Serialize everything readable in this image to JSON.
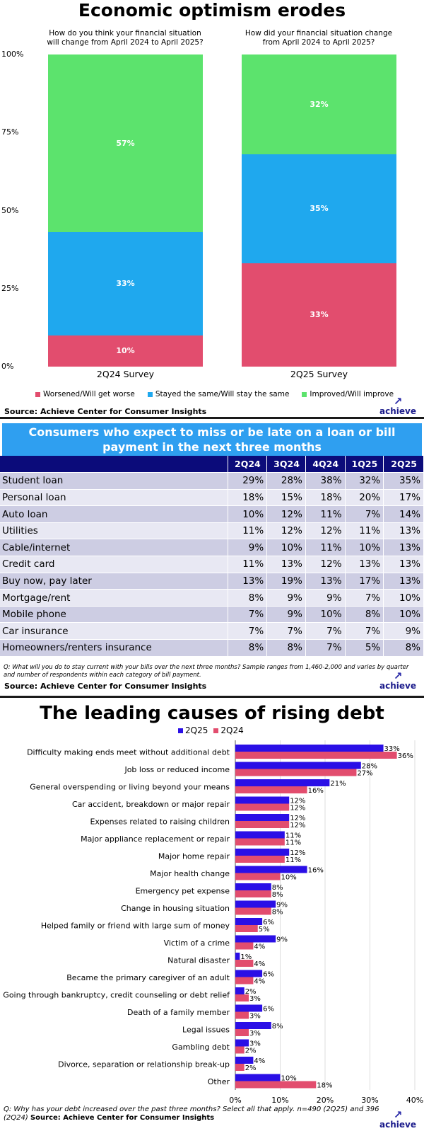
{
  "chart_data": [
    {
      "type": "bar",
      "stacked": true,
      "title": "Economic optimism erodes",
      "questions": [
        "How do you think your financial situation will change from April 2024 to April 2025?",
        "How did your financial situation change from April 2024 to April 2025?"
      ],
      "categories": [
        "2Q24 Survey",
        "2Q25 Survey"
      ],
      "yticks": [
        "0%",
        "25%",
        "50%",
        "75%",
        "100%"
      ],
      "ylim": [
        0,
        100
      ],
      "series": [
        {
          "name": "Worsened/Will get worse",
          "color": "#e24d6e",
          "values": [
            10,
            33
          ],
          "labels": [
            "10%",
            "33%"
          ]
        },
        {
          "name": "Stayed the same/Will stay the same",
          "color": "#1fa8ee",
          "values": [
            33,
            35
          ],
          "labels": [
            "33%",
            "35%"
          ]
        },
        {
          "name": "Improved/Will improve",
          "color": "#5ce36d",
          "values": [
            57,
            32
          ],
          "labels": [
            "57%",
            "32%"
          ]
        }
      ],
      "legend_position": "bottom",
      "source": "Source: Achieve Center for Consumer Insights"
    },
    {
      "type": "table",
      "title": "Consumers who expect to miss or be late on a loan or bill payment in the next three months",
      "columns": [
        "2Q24",
        "3Q24",
        "4Q24",
        "1Q25",
        "2Q25"
      ],
      "rows": [
        {
          "label": "Student loan",
          "values": [
            "29%",
            "28%",
            "38%",
            "32%",
            "35%"
          ]
        },
        {
          "label": "Personal loan",
          "values": [
            "18%",
            "15%",
            "18%",
            "20%",
            "17%"
          ]
        },
        {
          "label": "Auto loan",
          "values": [
            "10%",
            "12%",
            "11%",
            "7%",
            "14%"
          ]
        },
        {
          "label": "Utilities",
          "values": [
            "11%",
            "12%",
            "12%",
            "11%",
            "13%"
          ]
        },
        {
          "label": "Cable/internet",
          "values": [
            "9%",
            "10%",
            "11%",
            "10%",
            "13%"
          ]
        },
        {
          "label": "Credit card",
          "values": [
            "11%",
            "13%",
            "12%",
            "13%",
            "13%"
          ]
        },
        {
          "label": "Buy now, pay later",
          "values": [
            "13%",
            "19%",
            "13%",
            "17%",
            "13%"
          ]
        },
        {
          "label": "Mortgage/rent",
          "values": [
            "8%",
            "9%",
            "9%",
            "7%",
            "10%"
          ]
        },
        {
          "label": "Mobile phone",
          "values": [
            "7%",
            "9%",
            "10%",
            "8%",
            "10%"
          ]
        },
        {
          "label": "Car insurance",
          "values": [
            "7%",
            "7%",
            "7%",
            "7%",
            "9%"
          ]
        },
        {
          "label": "Homeowners/renters insurance",
          "values": [
            "8%",
            "8%",
            "7%",
            "5%",
            "8%"
          ]
        }
      ],
      "note": "Q: What will you do to stay current with your bills over the next three months? Sample ranges from 1,460-2,000 and varies by quarter and number of respondents within each category of bill payment.",
      "source": "Source: Achieve Center for Consumer Insights"
    },
    {
      "type": "bar",
      "orientation": "horizontal",
      "title": "The leading causes of rising debt",
      "categories": [
        "Difficulty making ends meet without additional debt",
        "Job loss or reduced income",
        "General overspending or living beyond your means",
        "Car accident, breakdown or major repair",
        "Expenses related to raising children",
        "Major appliance replacement or repair",
        "Major home repair",
        "Major health change",
        "Emergency pet expense",
        "Change in housing situation",
        "Helped family or friend with large sum of money",
        "Victim of a crime",
        "Natural disaster",
        "Became the primary caregiver of an adult",
        "Going through bankruptcy, credit counseling or debt relief",
        "Death of a family member",
        "Legal issues",
        "Gambling debt",
        "Divorce, separation or relationship break-up",
        "Other"
      ],
      "series": [
        {
          "name": "2Q25",
          "color": "#2a0fe6",
          "values": [
            33,
            28,
            21,
            12,
            12,
            11,
            12,
            16,
            8,
            9,
            6,
            9,
            1,
            6,
            2,
            6,
            8,
            3,
            4,
            10
          ]
        },
        {
          "name": "2Q24",
          "color": "#e24d6e",
          "values": [
            36,
            27,
            16,
            12,
            12,
            11,
            11,
            10,
            8,
            8,
            5,
            4,
            4,
            4,
            3,
            3,
            3,
            2,
            2,
            18
          ]
        }
      ],
      "xticks": [
        "0%",
        "10%",
        "20%",
        "30%",
        "40%"
      ],
      "xlim": [
        0,
        40
      ],
      "legend_position": "top",
      "note": "Q: Why has your debt increased over the past three months? Select all that apply. n=490 (2Q25) and 396 (2Q24)",
      "source": "Source: Achieve Center for Consumer Insights"
    }
  ],
  "logo_text": "achieve"
}
